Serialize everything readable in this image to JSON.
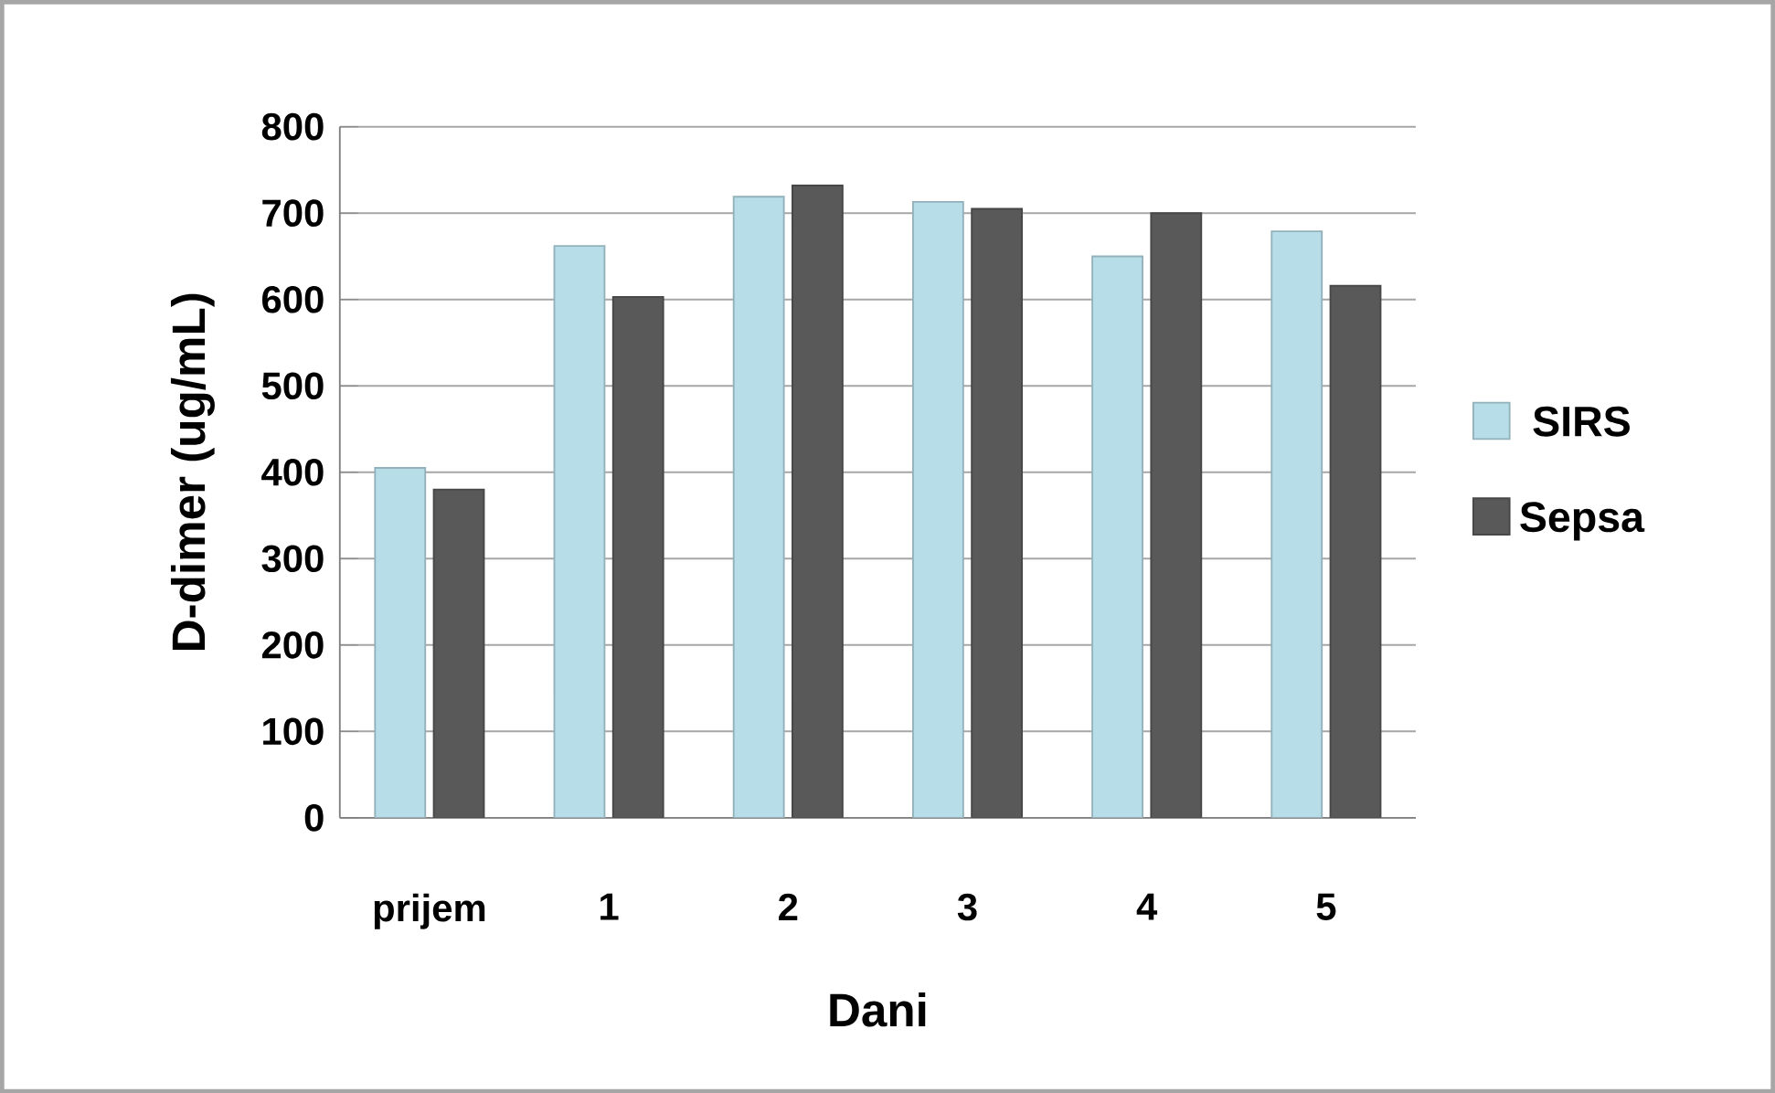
{
  "chart_data": {
    "type": "bar",
    "xlabel": "Dani",
    "ylabel": "D-dimer (ug/mL)",
    "categories": [
      "prijem",
      "1",
      "2",
      "3",
      "4",
      "5"
    ],
    "series": [
      {
        "name": "SIRS",
        "color": "#b7dde8",
        "values": [
          405,
          662,
          719,
          713,
          650,
          679
        ]
      },
      {
        "name": "Sepsa",
        "color": "#595959",
        "values": [
          380,
          603,
          732,
          705,
          700,
          616
        ]
      }
    ],
    "ylim": [
      0,
      800
    ],
    "yticks": [
      0,
      100,
      200,
      300,
      400,
      500,
      600,
      700,
      800
    ],
    "grid": "y",
    "legend": "right"
  }
}
